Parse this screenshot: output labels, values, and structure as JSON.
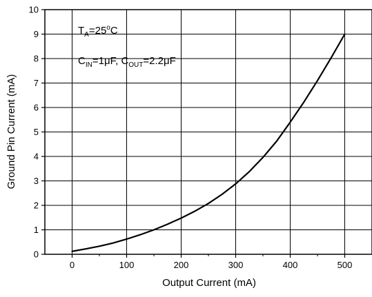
{
  "chart_data": {
    "type": "line",
    "title": "",
    "xlabel": "Output Current (mA)",
    "ylabel": "Ground Pin Current (mA)",
    "xlim": [
      -50,
      550
    ],
    "ylim": [
      0,
      10
    ],
    "x_ticks": [
      0,
      100,
      200,
      300,
      400,
      500
    ],
    "y_ticks": [
      0,
      1,
      2,
      3,
      4,
      5,
      6,
      7,
      8,
      9,
      10
    ],
    "grid": true,
    "legend": "none",
    "series": [
      {
        "color": "#000000",
        "x": [
          0,
          25,
          50,
          75,
          100,
          125,
          150,
          175,
          200,
          225,
          250,
          275,
          300,
          325,
          350,
          375,
          400,
          425,
          450,
          475,
          500
        ],
        "y": [
          0.12,
          0.22,
          0.33,
          0.46,
          0.62,
          0.8,
          1.0,
          1.23,
          1.48,
          1.76,
          2.08,
          2.45,
          2.88,
          3.38,
          3.96,
          4.62,
          5.4,
          6.22,
          7.1,
          8.03,
          9.0
        ]
      }
    ],
    "annotations": {
      "line1": {
        "t": "T",
        "t_sub": "A",
        "eq": "=25",
        "deg": "o",
        "unit": "C"
      },
      "line2": {
        "c1": "C",
        "c1_sub": "IN",
        "c1_val": "=1μF, ",
        "c2": "C",
        "c2_sub": "OUT",
        "c2_val": "=2.2μF"
      }
    }
  }
}
